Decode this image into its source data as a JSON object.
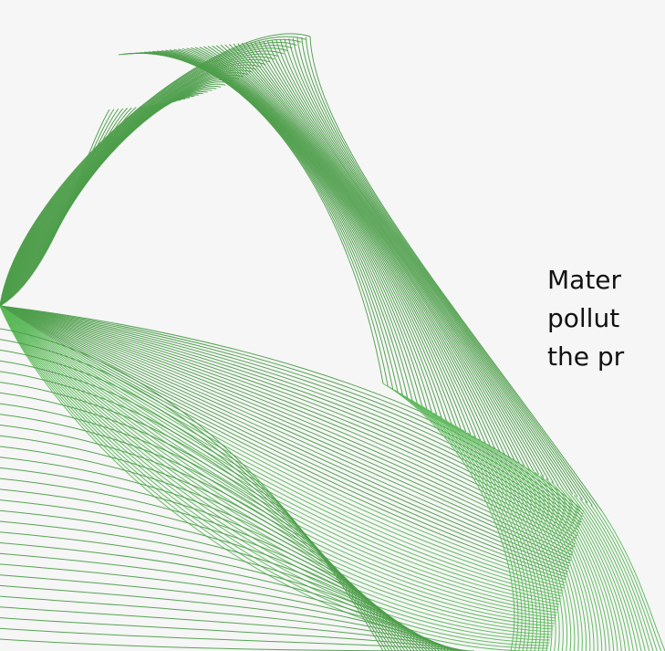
{
  "hero": {
    "text_lines": [
      "Mater",
      "pollut",
      "the pr"
    ],
    "art": {
      "icon": "green-line-wave-art",
      "stroke_color": "#4e9e4b",
      "stroke_color_light": "#5cb85a"
    }
  },
  "colors": {
    "background": "#f6f6f6",
    "text": "#111111"
  }
}
